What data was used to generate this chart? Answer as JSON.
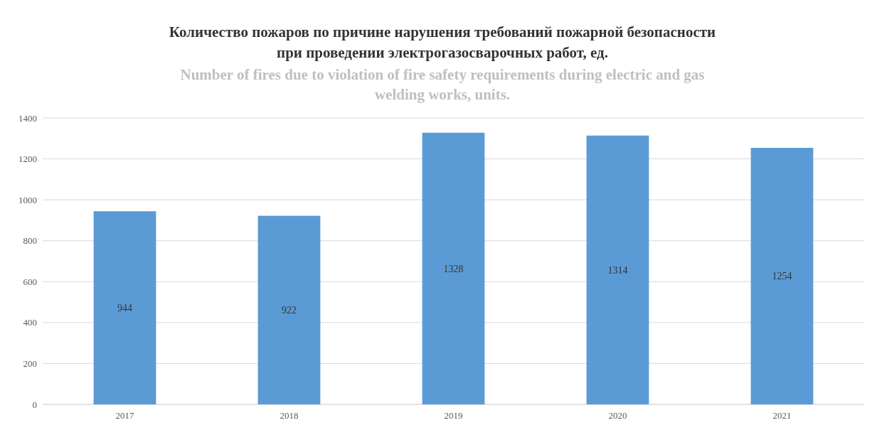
{
  "chart_data": {
    "type": "bar",
    "title": "Количество пожаров по причине нарушения требований пожарной безопасности\nпри проведении электрогазосварочных работ,   ед.",
    "subtitle": "Number of fires due to violation of fire safety requirements during electric and gas\nwelding works,  units.",
    "categories": [
      "2017",
      "2018",
      "2019",
      "2020",
      "2021"
    ],
    "values": [
      944,
      922,
      1328,
      1314,
      1254
    ],
    "color": "#5b9bd5",
    "ylim": [
      0,
      1400
    ],
    "yticks": [
      0,
      200,
      400,
      600,
      800,
      1000,
      1200,
      1400
    ],
    "grid": "y",
    "data_labels": true
  }
}
